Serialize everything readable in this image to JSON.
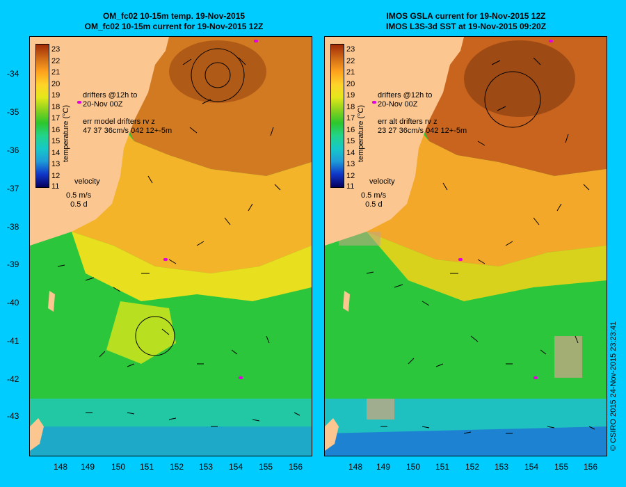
{
  "left_panel": {
    "title_line1": "OM_fc02 10-15m temp. 19-Nov-2015",
    "title_line2": "OM_fc02 10-15m current for 19-Nov-2015 12Z",
    "drifter_label": "drifters @12h to\n20-Nov 00Z",
    "err_label": "err model drifters rv z\n47 37 36cm/s 042 12+-5m",
    "velocity_label": "velocity",
    "velocity_scale": "0.5 m/s\n  0.5 d"
  },
  "right_panel": {
    "title_line1": "IMOS GSLA current for 19-Nov-2015 12Z",
    "title_line2": "IMOS L3S-3d SST at 19-Nov-2015 09:20Z",
    "drifter_label": "drifters @12h to\n20-Nov 00Z",
    "err_label": "err alt drifters rv z\n23 27 36cm/s 042 12+-5m",
    "velocity_label": "velocity",
    "velocity_scale": "0.5 m/s\n  0.5 d"
  },
  "colorbar": {
    "label": "temperature (°C)",
    "ticks": [
      "23",
      "22",
      "21",
      "20",
      "19",
      "18",
      "17",
      "16",
      "15",
      "14",
      "13",
      "12",
      "11"
    ]
  },
  "lat_ticks": [
    "-34",
    "-35",
    "-36",
    "-37",
    "-38",
    "-39",
    "-40",
    "-41",
    "-42",
    "-43"
  ],
  "lon_ticks": [
    "148",
    "149",
    "150",
    "151",
    "152",
    "153",
    "154",
    "155",
    "156"
  ],
  "copyright": "© CSIRO 2015   24-Nov-2015 23:23:41",
  "colors": {
    "background": "#00ccff",
    "land": "#fbc690",
    "warm": "#c8641e",
    "mid": "#f2d21e",
    "cool": "#2cc63c",
    "cold": "#1e9bd8",
    "drifter": "#e000e0"
  }
}
